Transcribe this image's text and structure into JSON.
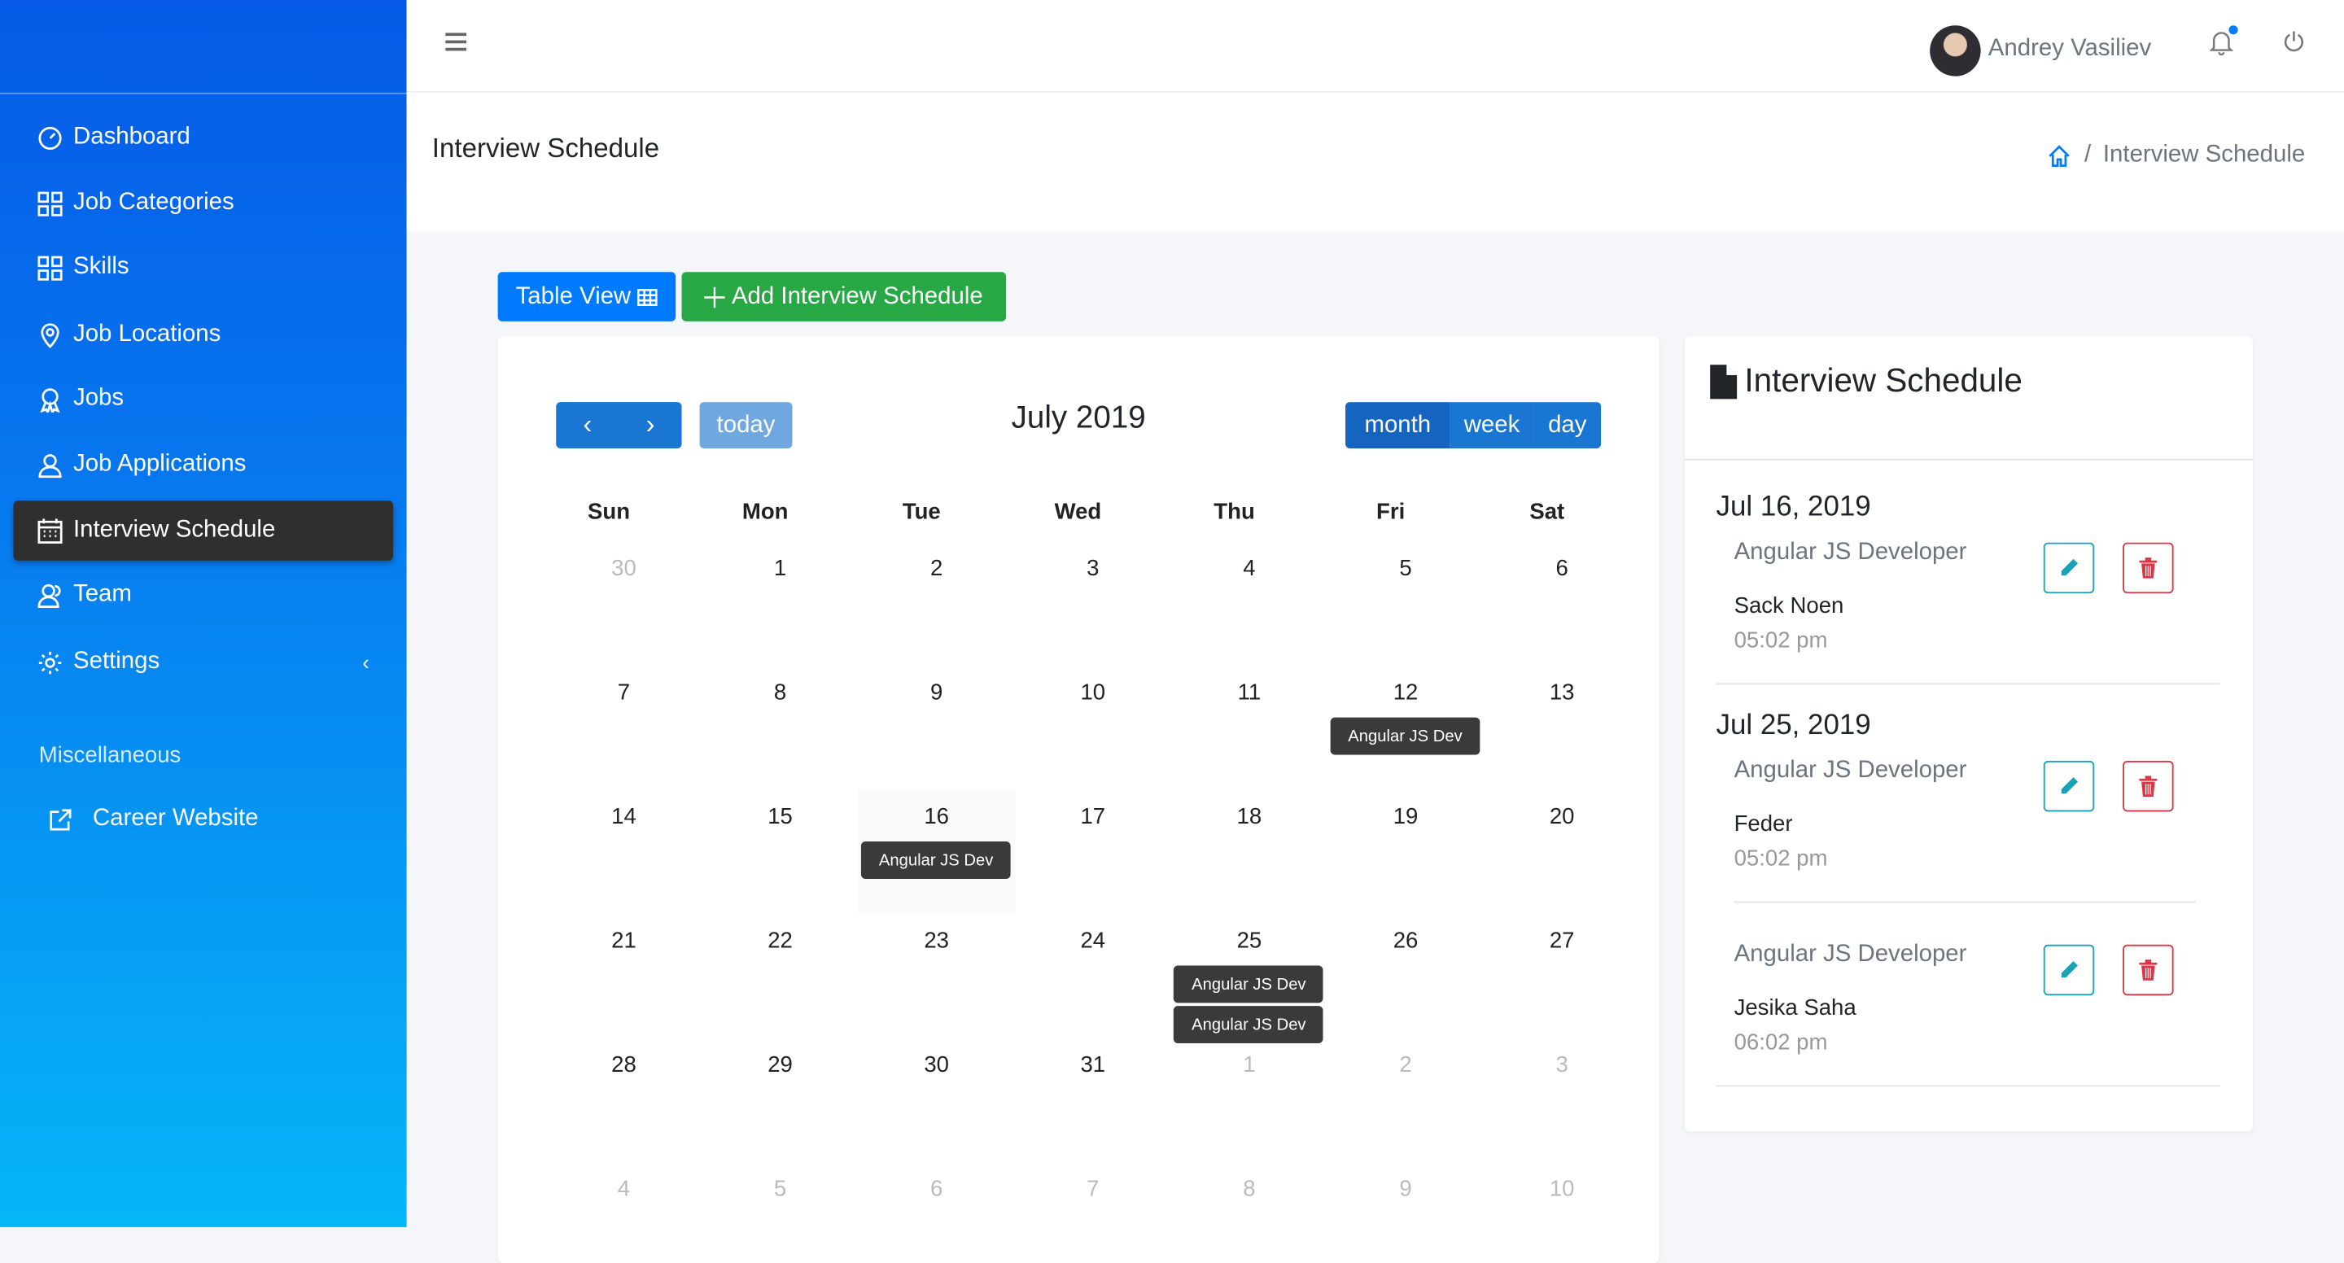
{
  "sidebar": {
    "items": [
      {
        "label": "Dashboard",
        "icon": "dashboard-icon"
      },
      {
        "label": "Job Categories",
        "icon": "grid-icon"
      },
      {
        "label": "Skills",
        "icon": "grid-icon"
      },
      {
        "label": "Job Locations",
        "icon": "location-pin-icon"
      },
      {
        "label": "Jobs",
        "icon": "award-icon"
      },
      {
        "label": "Job Applications",
        "icon": "user-icon"
      },
      {
        "label": "Interview Schedule",
        "icon": "calendar-icon",
        "active": true
      },
      {
        "label": "Team",
        "icon": "team-icon"
      },
      {
        "label": "Settings",
        "icon": "gear-icon"
      }
    ],
    "section": "Miscellaneous",
    "external": "Career Website"
  },
  "topbar": {
    "user": "Andrey Vasiliev"
  },
  "page": {
    "title": "Interview Schedule",
    "breadcrumb": "Interview Schedule"
  },
  "toolbar": {
    "table_view": "Table View",
    "add": "Add Interview Schedule"
  },
  "calendar": {
    "title": "July 2019",
    "today": "today",
    "views": [
      "month",
      "week",
      "day"
    ],
    "active_view": "month",
    "weekdays": [
      "Sun",
      "Mon",
      "Tue",
      "Wed",
      "Thu",
      "Fri",
      "Sat"
    ],
    "weeks": [
      [
        30,
        1,
        2,
        3,
        4,
        5,
        6
      ],
      [
        7,
        8,
        9,
        10,
        11,
        12,
        13
      ],
      [
        14,
        15,
        16,
        17,
        18,
        19,
        20
      ],
      [
        21,
        22,
        23,
        24,
        25,
        26,
        27
      ],
      [
        28,
        29,
        30,
        31,
        1,
        2,
        3
      ],
      [
        4,
        5,
        6,
        7,
        8,
        9,
        10
      ]
    ],
    "today_date": 16,
    "events": [
      {
        "day": 12,
        "label": "Angular JS Dev"
      },
      {
        "day": 16,
        "label": "Angular JS Dev"
      },
      {
        "day": 25,
        "label": "Angular JS Dev"
      },
      {
        "day": 25,
        "label": "Angular JS Dev"
      }
    ]
  },
  "schedule": {
    "title": "Interview Schedule",
    "items": [
      {
        "date": "Jul 16, 2019",
        "position": "Angular JS Developer",
        "name": "Sack Noen",
        "time": "05:02 pm"
      },
      {
        "date": "Jul 25, 2019",
        "position": "Angular JS Developer",
        "name": "Feder",
        "time": "05:02 pm"
      },
      {
        "date": "",
        "position": "Angular JS Developer",
        "name": "Jesika Saha",
        "time": "06:02 pm"
      }
    ]
  },
  "colors": {
    "primary": "#007bff",
    "success": "#28a745",
    "active_nav": "#2f2f2f",
    "edit": "#17a2b8",
    "delete": "#dc3545"
  }
}
